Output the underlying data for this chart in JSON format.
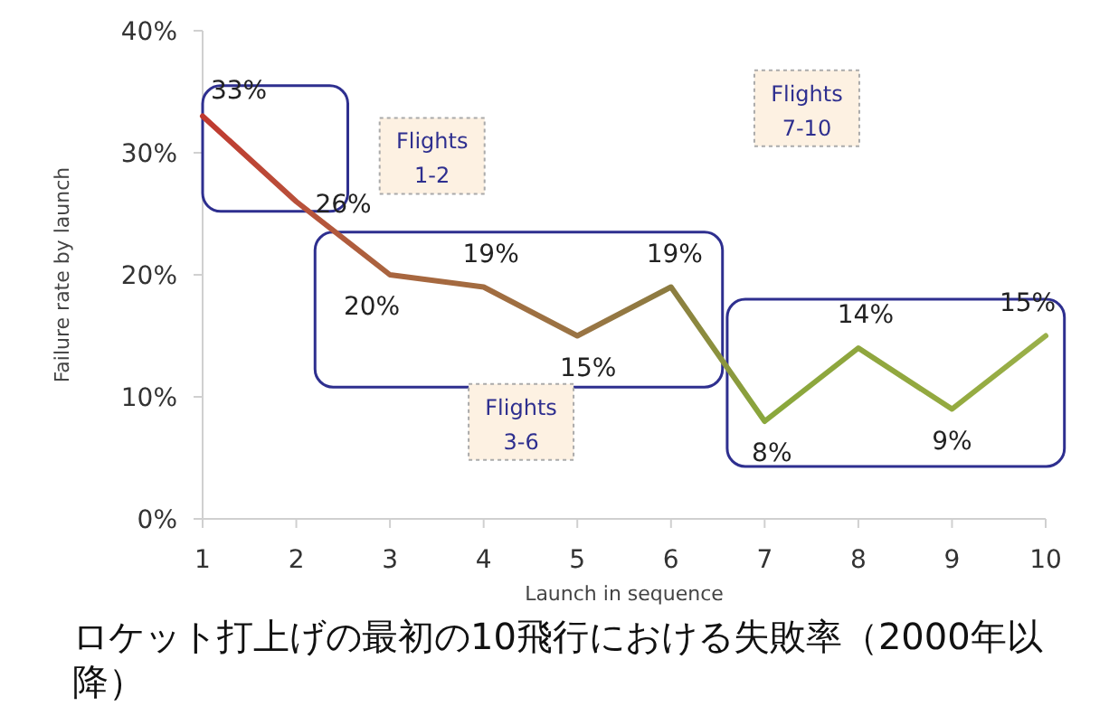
{
  "chart_data": {
    "type": "line",
    "title": "ロケット打上げの最初の10飛行における失敗率（2000年以降）",
    "xlabel": "Launch in sequence",
    "ylabel": "Failure rate by launch",
    "x": [
      1,
      2,
      3,
      4,
      5,
      6,
      7,
      8,
      9,
      10
    ],
    "series": [
      {
        "values": [
          33,
          26,
          20,
          19,
          15,
          19,
          8,
          14,
          9,
          15
        ],
        "colors": [
          "#c0392f",
          "#b9503a",
          "#a9653f",
          "#a26c40",
          "#9a7444",
          "#8c7c40",
          "#8aa83c",
          "#8fa63e",
          "#94aa40",
          "#9ab04a"
        ]
      }
    ],
    "value_labels": [
      "33%",
      "26%",
      "20%",
      "19%",
      "15%",
      "19%",
      "8%",
      "14%",
      "9%",
      "15%"
    ],
    "annotations": [
      "Flights\n1-2",
      "Flights\n3-6",
      "Flights\n7-10"
    ],
    "xlim": [
      1,
      10
    ],
    "xticks": [
      1,
      2,
      3,
      4,
      5,
      6,
      7,
      8,
      9,
      10
    ],
    "ylim": [
      0,
      40
    ],
    "yticks": [
      {
        "value": 0,
        "label": "0%"
      },
      {
        "value": 10,
        "label": "10%"
      },
      {
        "value": 20,
        "label": "20%"
      },
      {
        "value": 30,
        "label": "30%"
      },
      {
        "value": 40,
        "label": "40%"
      }
    ],
    "grid": false
  }
}
